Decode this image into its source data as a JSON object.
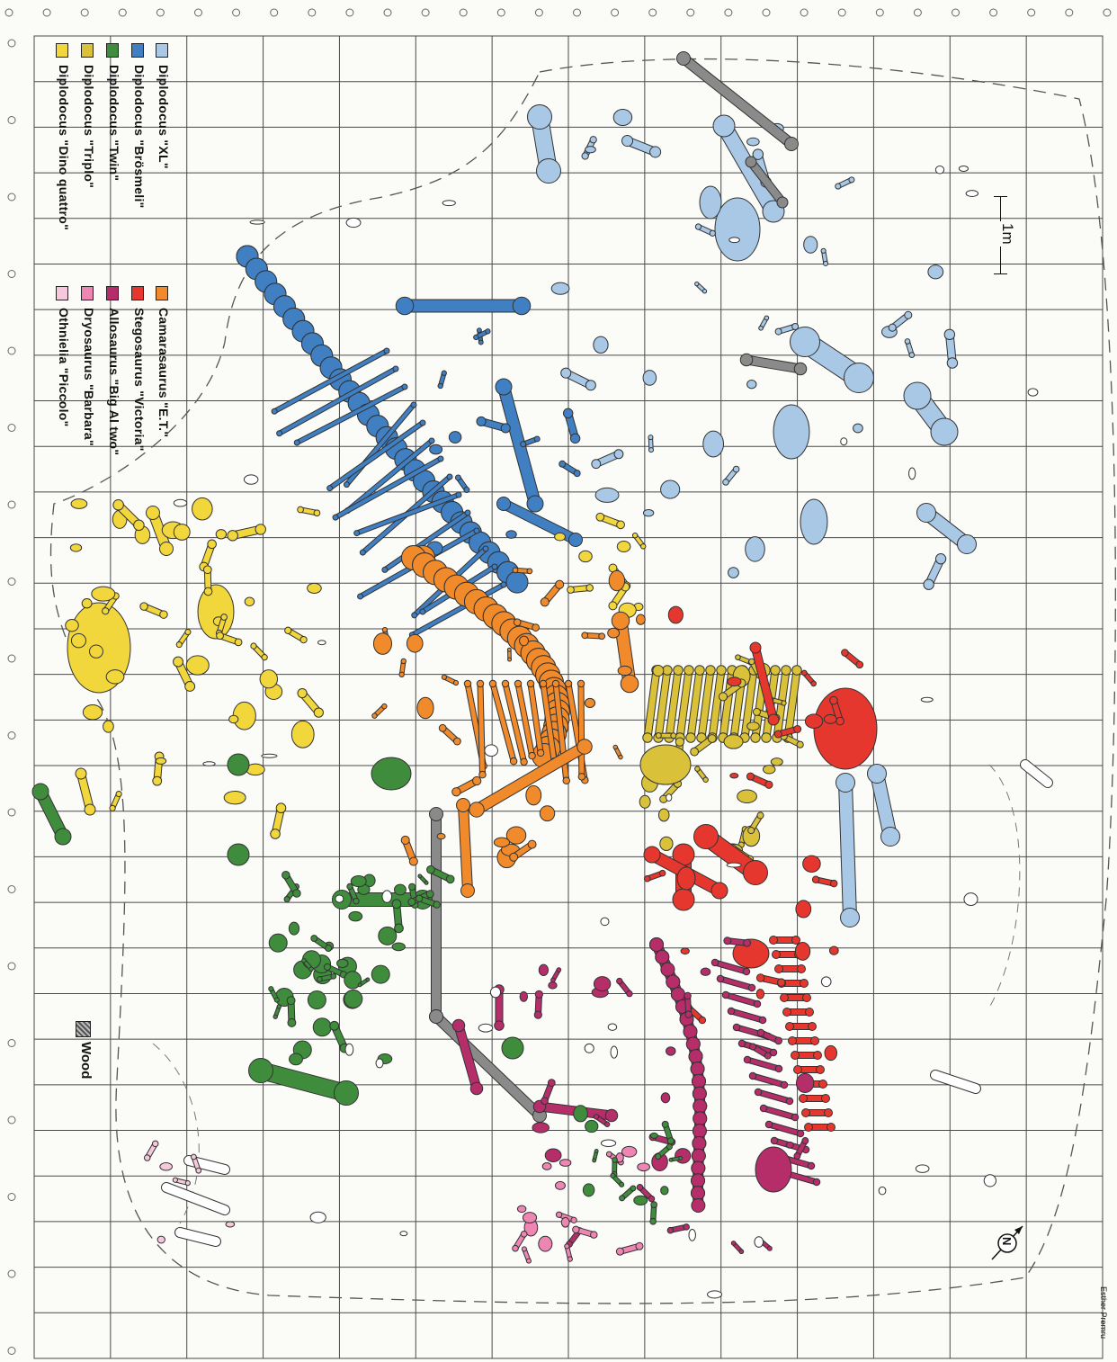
{
  "legend": {
    "left_column": [
      {
        "label": "Diplodocus \"XL\"",
        "color": "#a9c8e6"
      },
      {
        "label": "Diplodocus \"Brösmeli\"",
        "color": "#3f7fc2"
      },
      {
        "label": "Diplodocus \"Twin\"",
        "color": "#3f8c3c"
      },
      {
        "label": "Diplodocus \"Triplo\"",
        "color": "#d9c23a"
      },
      {
        "label": "Diplodocus \"Dino quattro\"",
        "color": "#f1d63c"
      }
    ],
    "right_column": [
      {
        "label": "Camarasaurus \"E.T.\"",
        "color": "#f08a2a"
      },
      {
        "label": "Stegosaurus \"Victoria\"",
        "color": "#e5372e"
      },
      {
        "label": "Allosaurus \"Big Al two\"",
        "color": "#b52e6a"
      },
      {
        "label": "Dryosaurus \"Barbara\"",
        "color": "#ee86b4"
      },
      {
        "label": "Othnielia \"Piccolo\"",
        "color": "#f6c8dc"
      }
    ]
  },
  "wood_legend": {
    "label": "Wood",
    "color": "#7d7d7d"
  },
  "scale_bar": {
    "label": "1m"
  },
  "north_arrow": {
    "label": "N"
  },
  "credit": "Esther Premru"
}
